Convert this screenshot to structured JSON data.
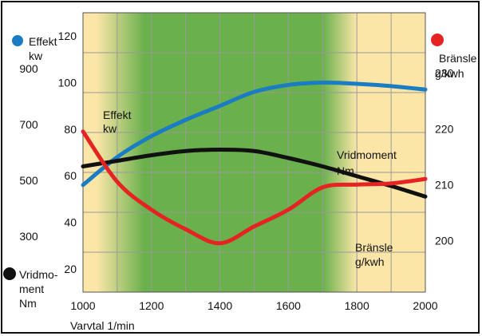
{
  "chart_data": {
    "type": "line",
    "x": [
      1000,
      1100,
      1200,
      1300,
      1400,
      1500,
      1600,
      1700,
      1800,
      1900,
      2000
    ],
    "x_ticks": [
      1000,
      1200,
      1400,
      1600,
      1800,
      2000
    ],
    "xlim": [
      1000,
      2000
    ],
    "xlabel": "Varvtal 1/min",
    "green_band": [
      1180,
      1700
    ],
    "axes": {
      "power": {
        "title": "Effekt",
        "unit": "kw",
        "ticks": [
          20,
          40,
          60,
          80,
          100,
          120
        ],
        "range": [
          10,
          130
        ]
      },
      "torque": {
        "title": "Vridmoment",
        "title_lines": [
          "Vridmo-",
          "ment"
        ],
        "unit": "Nm",
        "ticks": [
          300,
          500,
          700,
          900
        ],
        "range": [
          100,
          1100
        ]
      },
      "fuel": {
        "title": "Bränsle",
        "unit": "g/kwh",
        "ticks": [
          200,
          210,
          220,
          230
        ],
        "range": [
          190.75,
          240.75
        ]
      }
    },
    "series": [
      {
        "key": "power",
        "name": "Effekt",
        "unit": "kw",
        "axis": "power",
        "color": "#1a7cc2",
        "y": [
          56,
          68,
          77,
          84,
          90,
          96,
          99,
          100,
          99.5,
          98.5,
          97
        ]
      },
      {
        "key": "torque",
        "name": "Vridmoment",
        "unit": "Nm",
        "axis": "torque",
        "color": "#111111",
        "y": [
          550,
          570,
          590,
          605,
          610,
          605,
          580,
          550,
          515,
          480,
          442
        ]
      },
      {
        "key": "fuel",
        "name": "Bränsle",
        "unit": "g/kwh",
        "axis": "fuel",
        "color": "#e52322",
        "y": [
          219.5,
          210.5,
          205.5,
          202,
          199.5,
          202.5,
          205.5,
          209.5,
          210,
          210.2,
          211
        ]
      }
    ],
    "legend": {
      "power_marker_color": "#1a7cc2",
      "torque_marker_color": "#111111",
      "fuel_marker_color": "#e52322"
    },
    "background": {
      "light": "#fbe6a8",
      "green": "#6ab04c",
      "grid": "#999999"
    },
    "grid": true
  }
}
